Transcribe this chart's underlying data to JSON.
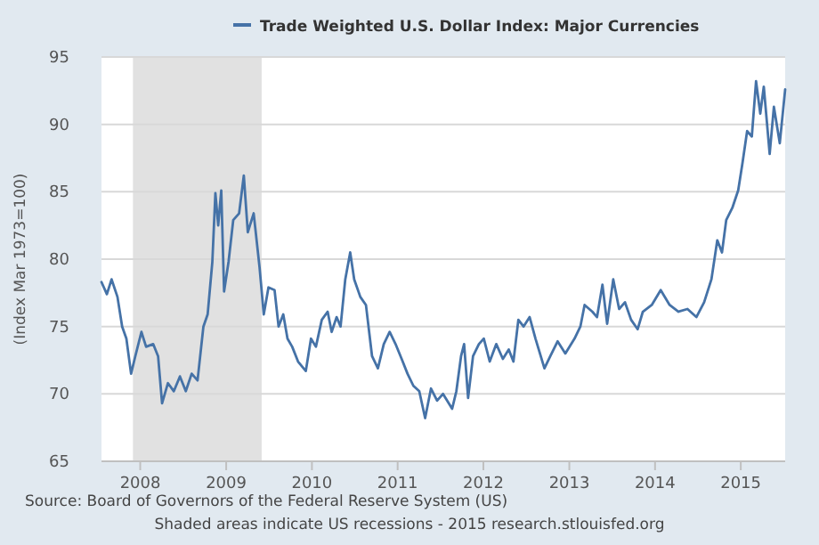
{
  "chart_data": {
    "type": "line",
    "ylabel": "(Index Mar 1973=100)",
    "xlim": [
      "2007-07-20",
      "2015-07-09"
    ],
    "xticks": [
      "2008",
      "2009",
      "2010",
      "2011",
      "2012",
      "2013",
      "2014",
      "2015"
    ],
    "ylim": [
      65,
      95
    ],
    "yticks": [
      65,
      70,
      75,
      80,
      85,
      90,
      95
    ],
    "grid": "y",
    "legend": "top",
    "bands": [
      {
        "axis": "x",
        "from": "2007-12",
        "to": "2009-06",
        "color": "#e1e1e1"
      }
    ],
    "annotations": [
      "Source: Board of Governors of the Federal Reserve System (US)",
      "Shaded areas indicate US recessions - 2015 research.stlouisfed.org"
    ],
    "series": [
      {
        "name": "Trade Weighted U.S. Dollar Index: Major Currencies",
        "color": "#4572a7",
        "x": [
          "2007-07-20",
          "2007-08-12",
          "2007-09-01",
          "2007-09-26",
          "2007-10-16",
          "2007-11-03",
          "2007-11-23",
          "2007-12-11",
          "2008-01-06",
          "2008-01-26",
          "2008-02-25",
          "2008-03-17",
          "2008-04-03",
          "2008-04-28",
          "2008-05-23",
          "2008-06-18",
          "2008-07-13",
          "2008-08-07",
          "2008-09-01",
          "2008-09-26",
          "2008-10-14",
          "2008-11-03",
          "2008-11-16",
          "2008-11-28",
          "2008-12-11",
          "2008-12-23",
          "2009-01-11",
          "2009-01-31",
          "2009-02-25",
          "2009-03-17",
          "2009-04-03",
          "2009-04-28",
          "2009-05-23",
          "2009-06-10",
          "2009-06-30",
          "2009-07-26",
          "2009-08-12",
          "2009-09-01",
          "2009-09-19",
          "2009-10-09",
          "2009-11-03",
          "2009-12-06",
          "2009-12-28",
          "2010-01-18",
          "2010-02-12",
          "2010-03-09",
          "2010-03-26",
          "2010-04-16",
          "2010-05-03",
          "2010-05-23",
          "2010-06-13",
          "2010-06-30",
          "2010-07-26",
          "2010-08-19",
          "2010-09-14",
          "2010-10-09",
          "2010-11-03",
          "2010-11-28",
          "2010-12-23",
          "2011-01-18",
          "2011-02-12",
          "2011-03-09",
          "2011-04-03",
          "2011-04-28",
          "2011-05-23",
          "2011-06-18",
          "2011-07-13",
          "2011-08-21",
          "2011-09-08",
          "2011-09-28",
          "2011-10-11",
          "2011-10-28",
          "2011-11-18",
          "2011-12-13",
          "2012-01-03",
          "2012-01-28",
          "2012-02-25",
          "2012-03-24",
          "2012-04-18",
          "2012-05-08",
          "2012-05-29",
          "2012-06-20",
          "2012-07-16",
          "2012-08-10",
          "2012-09-17",
          "2012-10-12",
          "2012-11-12",
          "2012-12-15",
          "2013-01-23",
          "2013-02-17",
          "2013-03-07",
          "2013-04-09",
          "2013-04-29",
          "2013-05-22",
          "2013-06-11",
          "2013-07-07",
          "2013-08-01",
          "2013-08-26",
          "2013-09-21",
          "2013-10-19",
          "2013-11-10",
          "2013-12-18",
          "2014-01-25",
          "2014-03-04",
          "2014-04-11",
          "2014-05-19",
          "2014-06-26",
          "2014-07-29",
          "2014-08-29",
          "2014-09-23",
          "2014-10-13",
          "2014-10-31",
          "2014-11-26",
          "2014-12-21",
          "2015-01-08",
          "2015-01-28",
          "2015-02-17",
          "2015-03-07",
          "2015-03-25",
          "2015-04-09",
          "2015-05-04",
          "2015-05-22",
          "2015-06-16",
          "2015-07-09"
        ],
        "values": [
          78.3,
          77.4,
          78.5,
          77.2,
          75.0,
          74.1,
          71.5,
          72.8,
          74.6,
          73.5,
          73.7,
          72.8,
          69.3,
          70.8,
          70.2,
          71.3,
          70.2,
          71.5,
          71.0,
          75.0,
          75.9,
          79.8,
          84.9,
          82.5,
          85.1,
          77.6,
          79.8,
          82.9,
          83.4,
          86.2,
          82.0,
          83.4,
          79.4,
          75.9,
          77.9,
          77.7,
          75.0,
          75.9,
          74.1,
          73.5,
          72.4,
          71.7,
          74.1,
          73.5,
          75.5,
          76.1,
          74.6,
          75.7,
          75.0,
          78.5,
          80.5,
          78.5,
          77.2,
          76.6,
          72.8,
          71.9,
          73.7,
          74.6,
          73.7,
          72.6,
          71.5,
          70.6,
          70.2,
          68.2,
          70.4,
          69.5,
          70.0,
          68.9,
          70.2,
          72.8,
          73.7,
          69.7,
          72.8,
          73.7,
          74.1,
          72.4,
          73.7,
          72.6,
          73.3,
          72.4,
          75.5,
          75.0,
          75.7,
          74.1,
          71.9,
          72.8,
          73.9,
          73.0,
          74.1,
          75.0,
          76.6,
          76.1,
          75.7,
          78.1,
          75.2,
          78.5,
          76.3,
          76.8,
          75.5,
          74.8,
          76.1,
          76.6,
          77.7,
          76.6,
          76.1,
          76.3,
          75.7,
          76.8,
          78.5,
          81.4,
          80.5,
          82.9,
          83.8,
          85.1,
          87.1,
          89.5,
          89.1,
          93.2,
          90.8,
          92.8,
          87.8,
          91.3,
          88.6,
          92.6
        ]
      }
    ]
  }
}
